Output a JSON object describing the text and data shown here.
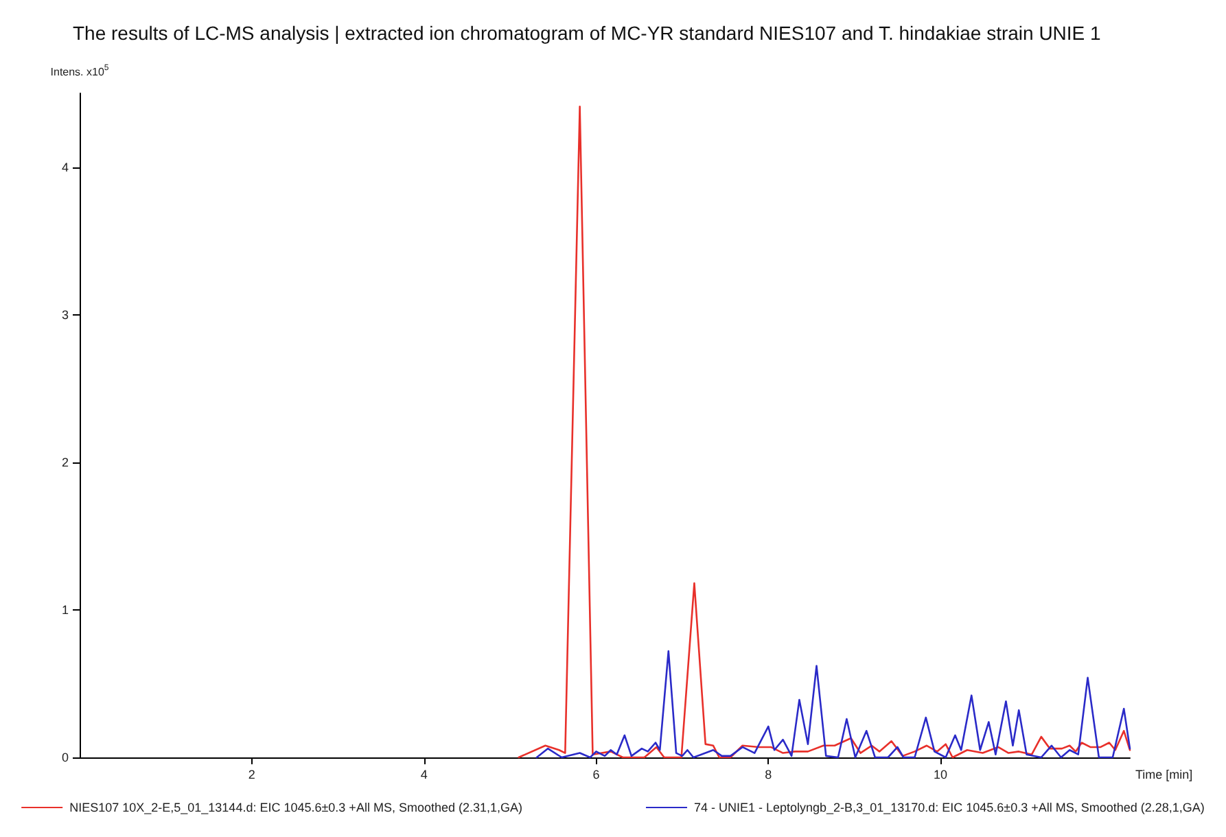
{
  "chart_data": {
    "type": "line",
    "title": "The results of LC-MS analysis | extracted ion chromatogram of MC-YR standard NIES107 and T. hindakiae strain UNIE 1",
    "xlabel": "Time [min]",
    "ylabel": "Intens. x10$^{5}$",
    "xlim": [
      0,
      12.2
    ],
    "xticks": [
      2,
      4,
      6,
      8,
      10
    ],
    "ylim": [
      0,
      4.5
    ],
    "yticks": [
      0,
      1,
      2,
      3,
      4
    ],
    "grid": false,
    "legend": "bottom",
    "marker": "none",
    "line_style": "solid",
    "series": [
      {
        "name": "NIES107 10X_2-E,5_01_13144.d: EIC 1045.6±0.3 +All MS, Smoothed (2.31,1,GA)",
        "color": "#e8302a",
        "x": [
          5.1,
          5.41,
          5.57,
          5.64,
          5.81,
          5.96,
          6.17,
          6.31,
          6.56,
          6.7,
          6.79,
          6.99,
          7.14,
          7.27,
          7.36,
          7.43,
          7.56,
          7.7,
          7.89,
          8.03,
          8.17,
          8.31,
          8.46,
          8.64,
          8.77,
          8.96,
          9.07,
          9.2,
          9.29,
          9.43,
          9.56,
          9.7,
          9.84,
          9.96,
          10.06,
          10.14,
          10.31,
          10.49,
          10.67,
          10.79,
          10.91,
          11.06,
          11.17,
          11.27,
          11.41,
          11.5,
          11.57,
          11.64,
          11.74,
          11.86,
          11.96,
          12.03,
          12.13,
          12.2
        ],
        "values": [
          0,
          0.08,
          0.05,
          0.03,
          4.41,
          0.02,
          0.04,
          0,
          0,
          0.07,
          0,
          0,
          1.18,
          0.09,
          0.08,
          0,
          0,
          0.08,
          0.07,
          0.07,
          0.03,
          0.04,
          0.04,
          0.08,
          0.08,
          0.13,
          0.03,
          0.08,
          0.04,
          0.11,
          0.01,
          0.04,
          0.08,
          0.04,
          0.09,
          0,
          0.05,
          0.03,
          0.07,
          0.03,
          0.04,
          0.02,
          0.14,
          0.06,
          0.06,
          0.08,
          0.04,
          0.1,
          0.07,
          0.07,
          0.1,
          0.05,
          0.18,
          0.05
        ]
      },
      {
        "name": "74 - UNIE1 - Leptolyngb_2-B,3_01_13170.d: EIC 1045.6±0.3 +All MS, Smoothed (2.28,1,GA)",
        "color": "#2a2ac8",
        "x": [
          5.31,
          5.44,
          5.6,
          5.81,
          5.93,
          6.0,
          6.1,
          6.17,
          6.24,
          6.33,
          6.41,
          6.53,
          6.6,
          6.69,
          6.74,
          6.84,
          6.93,
          7.0,
          7.06,
          7.13,
          7.36,
          7.46,
          7.56,
          7.7,
          7.84,
          8.0,
          8.07,
          8.17,
          8.27,
          8.36,
          8.46,
          8.56,
          8.67,
          8.81,
          8.91,
          9.01,
          9.14,
          9.24,
          9.39,
          9.5,
          9.57,
          9.7,
          9.83,
          9.93,
          10.06,
          10.17,
          10.24,
          10.36,
          10.46,
          10.56,
          10.64,
          10.76,
          10.84,
          10.91,
          11.0,
          11.17,
          11.29,
          11.4,
          11.5,
          11.6,
          11.71,
          11.84,
          12.0,
          12.13,
          12.2
        ],
        "values": [
          0,
          0.06,
          0,
          0.03,
          0,
          0.04,
          0.01,
          0.05,
          0.02,
          0.15,
          0.01,
          0.06,
          0.04,
          0.1,
          0.05,
          0.72,
          0.03,
          0.01,
          0.05,
          0,
          0.05,
          0.01,
          0.01,
          0.07,
          0.03,
          0.21,
          0.05,
          0.12,
          0.01,
          0.39,
          0.09,
          0.62,
          0.01,
          0,
          0.26,
          0,
          0.18,
          0,
          0,
          0.07,
          0,
          0,
          0.27,
          0.04,
          0,
          0.15,
          0.05,
          0.42,
          0.05,
          0.24,
          0.02,
          0.38,
          0.08,
          0.32,
          0.02,
          0,
          0.08,
          0,
          0.05,
          0.02,
          0.54,
          0,
          0,
          0.33,
          0.06
        ]
      }
    ]
  }
}
